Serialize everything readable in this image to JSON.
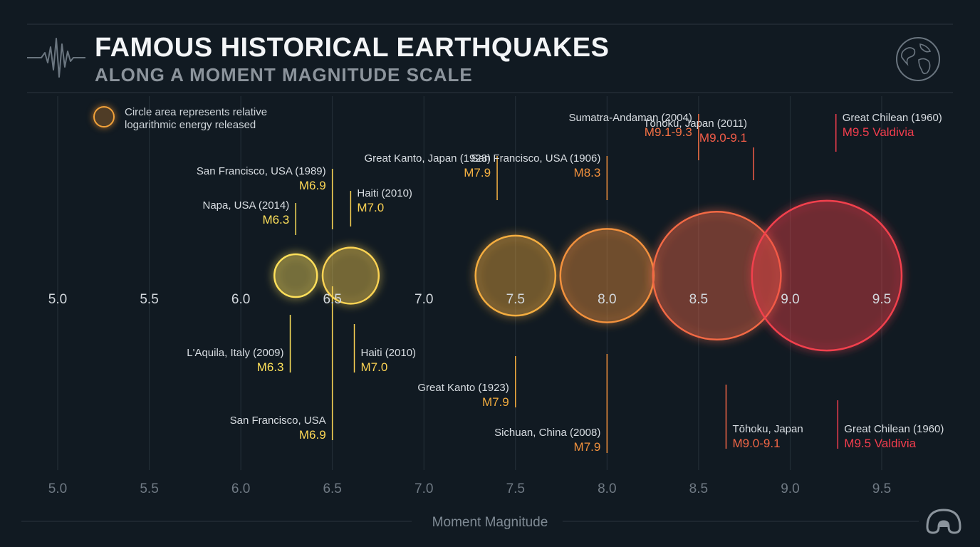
{
  "header": {
    "title": "FAMOUS HISTORICAL EARTHQUAKES",
    "subtitle": "ALONG A MOMENT MAGNITUDE SCALE"
  },
  "legend": {
    "text": "Circle area represents relative logarithmic energy released"
  },
  "icons": {
    "seismograph": "seismograph-icon",
    "globe": "globe-icon",
    "corner": "brand-logo-icon"
  },
  "colors": {
    "background": "#111a22",
    "scale_low": "#ffe45c",
    "scale_mid": "#f2a23a",
    "scale_high": "#f23a4e",
    "label_text": "#d8dde2"
  },
  "chart_data": {
    "type": "scatter",
    "encoding": "bubble",
    "xlabel": "Moment Magnitude",
    "xlim": [
      5.0,
      9.5
    ],
    "x_ticks": [
      "5.0",
      "5.5",
      "6.0",
      "6.5",
      "7.0",
      "7.5",
      "8.0",
      "8.5",
      "9.0",
      "9.5"
    ],
    "grid": true,
    "bubbles": [
      {
        "x": 6.3,
        "size": 6.3
      },
      {
        "x": 6.6,
        "size": 7.0
      },
      {
        "x": 7.5,
        "size": 7.9
      },
      {
        "x": 8.0,
        "size": 8.3
      },
      {
        "x": 8.6,
        "size": 9.1
      },
      {
        "x": 9.2,
        "size": 9.5
      }
    ],
    "annotations": [
      {
        "name": "Napa, USA (2014)",
        "magnitude": "M6.3",
        "x": 6.3,
        "position": "above"
      },
      {
        "name": "San Francisco, USA (1989)",
        "magnitude": "M6.9",
        "x": 6.5,
        "position": "above"
      },
      {
        "name": "Haiti (2010)",
        "magnitude": "M7.0",
        "x": 6.6,
        "position": "above"
      },
      {
        "name": "Great Kanto, Japan (1923)",
        "magnitude": "M7.9",
        "x": 7.4,
        "position": "above"
      },
      {
        "name": "San Francisco, USA (1906)",
        "magnitude": "M8.3",
        "x": 8.0,
        "position": "above"
      },
      {
        "name": "Sumatra-Andaman (2004)",
        "magnitude": "M9.1-9.3",
        "x": 8.5,
        "position": "above"
      },
      {
        "name": "Tōhoku, Japan (2011)",
        "magnitude": "M9.0-9.1",
        "x": 8.8,
        "position": "above"
      },
      {
        "name": "Great Chilean (1960)",
        "magnitude": "M9.5 Valdivia",
        "x": 9.25,
        "position": "above"
      },
      {
        "name": "L'Aquila, Italy (2009)",
        "magnitude": "M6.3",
        "x": 6.27,
        "position": "below"
      },
      {
        "name": "Haiti (2010)",
        "magnitude": "M7.0",
        "x": 6.62,
        "position": "below"
      },
      {
        "name": "Great Kanto (1923)",
        "magnitude": "M7.9",
        "x": 7.5,
        "position": "below"
      },
      {
        "name": "San Francisco, USA",
        "magnitude": "M6.9",
        "x": 6.5,
        "position": "below"
      },
      {
        "name": "Sichuan, China (2008)",
        "magnitude": "M7.9",
        "x": 8.0,
        "position": "below"
      },
      {
        "name": "Tōhoku, Japan",
        "magnitude": "M9.0-9.1",
        "x": 8.65,
        "position": "below"
      },
      {
        "name": "Great Chilean (1960)",
        "magnitude": "M9.5 Valdivia",
        "x": 9.26,
        "position": "below"
      }
    ]
  }
}
